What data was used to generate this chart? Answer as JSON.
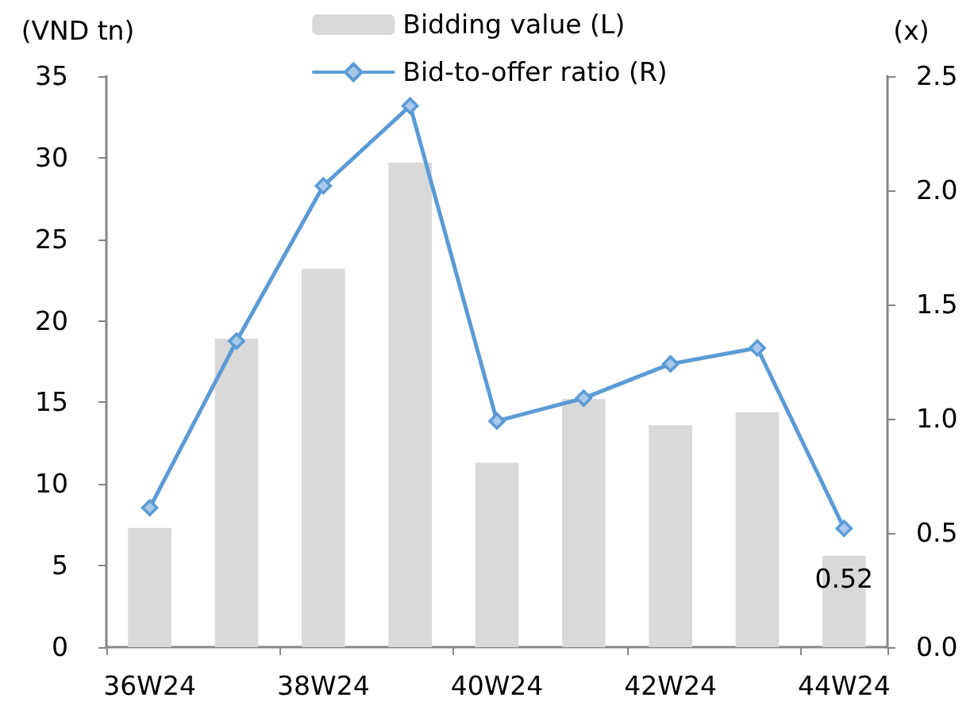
{
  "chart_data": {
    "type": "bar",
    "ylabel": "(VND tn)",
    "y2label": "(x)",
    "categories": [
      "36W24",
      null,
      "38W24",
      null,
      "40W24",
      null,
      "42W24",
      null,
      "44W24"
    ],
    "series": [
      {
        "name": "Bidding value (L)",
        "color": "#d9d9d9",
        "values": [
          7.3,
          18.9,
          23.2,
          29.7,
          11.3,
          15.2,
          13.6,
          14.4,
          5.6
        ]
      },
      {
        "name": "Bid-to-offer ratio (R)",
        "type": "line",
        "axis": "y2",
        "color": "#5b9bd5",
        "values": [
          0.61,
          1.34,
          2.02,
          2.37,
          0.99,
          1.09,
          1.24,
          1.31,
          0.52
        ],
        "value_labels": [
          null,
          null,
          null,
          null,
          null,
          null,
          null,
          null,
          "0.52"
        ]
      }
    ],
    "ylim": [
      0,
      35
    ],
    "yticks": [
      0,
      5,
      10,
      15,
      20,
      25,
      30,
      35
    ],
    "y2lim": [
      0,
      2.5
    ],
    "y2ticks": [
      {
        "value": 0,
        "label": "0.0"
      },
      0.5,
      {
        "value": 1,
        "label": "1.0"
      },
      1.5,
      {
        "value": 2,
        "label": "2.0"
      },
      2.5
    ],
    "marker": "diamond",
    "legend": "top"
  }
}
